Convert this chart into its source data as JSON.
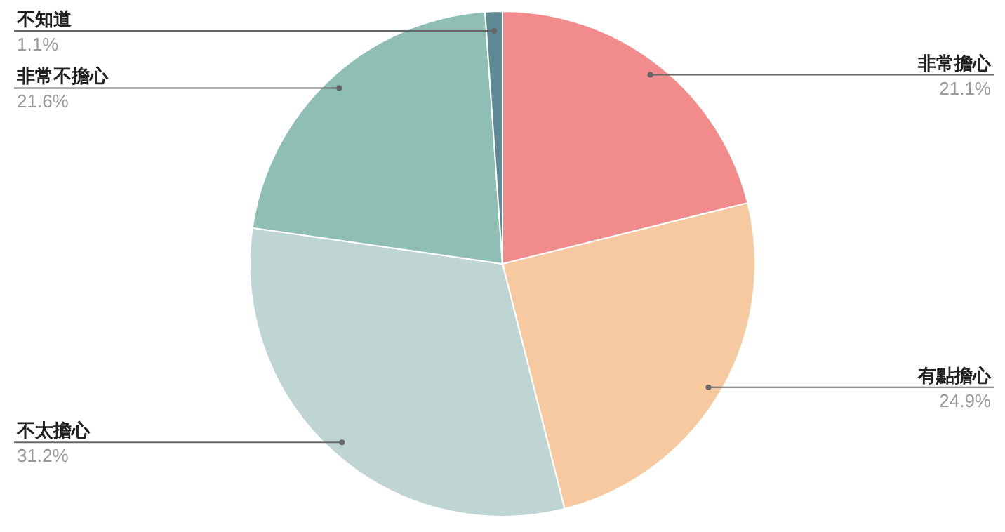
{
  "chart_data": {
    "type": "pie",
    "categories": [
      "非常擔心",
      "有點擔心",
      "不太擔心",
      "非常不擔心",
      "不知道"
    ],
    "values": [
      21.1,
      24.9,
      31.2,
      21.6,
      1.1
    ],
    "colors": [
      "#f28b8c",
      "#f7c9a0",
      "#bfd5d3",
      "#8fbeb5",
      "#5f8a94"
    ],
    "value_labels": [
      "21.1%",
      "24.9%",
      "31.2%",
      "21.6%",
      "1.1%"
    ]
  }
}
